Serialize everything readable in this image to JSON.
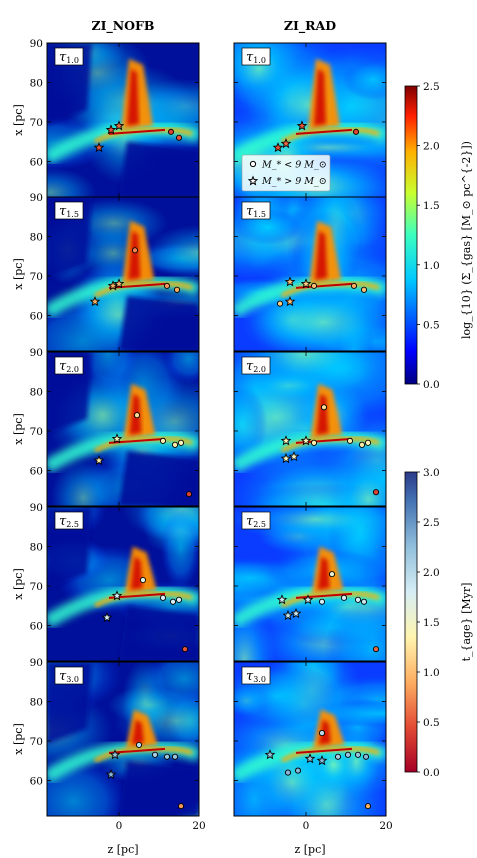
{
  "figure": {
    "columns": [
      "ZI_NOFB",
      "ZI_RAD"
    ],
    "row_labels": [
      "τ_{1.0}",
      "τ_{1.5}",
      "τ_{2.0}",
      "τ_{2.5}",
      "τ_{3.0}"
    ]
  },
  "legend": {
    "circle": "M_* < 9 M_⊙",
    "star": "M_* > 9 M_⊙"
  },
  "chart_data": {
    "type": "heatmap",
    "description_free": true,
    "xlabel": "z [pc]",
    "ylabel": "x [pc]",
    "xticks": [
      0,
      20
    ],
    "xlim": [
      -18,
      20
    ],
    "yticks": [
      60,
      70,
      80,
      90
    ],
    "ylim": [
      51,
      90
    ],
    "colorbars": [
      {
        "label": "log_{10} (Σ_{gas} [M_⊙ pc^{-2}])",
        "range": [
          0.0,
          2.5
        ],
        "ticks": [
          "0.0",
          "0.5",
          "1.0",
          "1.5",
          "2.0",
          "2.5"
        ],
        "cmap": "jet"
      },
      {
        "label": "t_{age} [Myr]",
        "range": [
          0.0,
          3.0
        ],
        "ticks": [
          "0.0",
          "0.5",
          "1.0",
          "1.5",
          "2.0",
          "2.5",
          "3.0"
        ],
        "cmap": "RdYlBu"
      }
    ],
    "panels": [
      {
        "col": "ZI_NOFB",
        "row": "τ_{1.0}",
        "stars": [
          {
            "z": -5,
            "x": 63.5,
            "age": 0.5
          },
          {
            "z": -2,
            "x": 68,
            "age": 0.5
          },
          {
            "z": 0,
            "x": 69,
            "age": 0.6
          }
        ],
        "circles": [
          {
            "z": 13,
            "x": 67.5,
            "age": 0.4
          },
          {
            "z": 15,
            "x": 66,
            "age": 0.5
          }
        ]
      },
      {
        "col": "ZI_RAD",
        "row": "τ_{1.0}",
        "stars": [
          {
            "z": -7,
            "x": 63.5,
            "age": 0.5
          },
          {
            "z": -5,
            "x": 64.5,
            "age": 0.6
          },
          {
            "z": -1,
            "x": 69,
            "age": 0.5
          }
        ],
        "circles": [
          {
            "z": 12.5,
            "x": 67.5,
            "age": 0.4
          }
        ]
      },
      {
        "col": "ZI_NOFB",
        "row": "τ_{1.5}",
        "stars": [
          {
            "z": -6,
            "x": 63.5,
            "age": 0.9
          },
          {
            "z": -1.5,
            "x": 67.5,
            "age": 0.9
          },
          {
            "z": 0,
            "x": 68,
            "age": 1.0
          }
        ],
        "circles": [
          {
            "z": 4,
            "x": 76.5,
            "age": 0.7
          },
          {
            "z": 12,
            "x": 67.5,
            "age": 0.8
          },
          {
            "z": 14.5,
            "x": 66.5,
            "age": 0.9
          }
        ]
      },
      {
        "col": "ZI_RAD",
        "row": "τ_{1.5}",
        "stars": [
          {
            "z": -4,
            "x": 68.5,
            "age": 1.0
          },
          {
            "z": -4,
            "x": 63.5,
            "age": 1.0
          },
          {
            "z": 0,
            "x": 68,
            "age": 1.1
          }
        ],
        "circles": [
          {
            "z": -6.5,
            "x": 63,
            "age": 1.1
          },
          {
            "z": 2,
            "x": 67.5,
            "age": 1.0
          },
          {
            "z": 12,
            "x": 67.5,
            "age": 0.9
          },
          {
            "z": 14.5,
            "x": 66.5,
            "age": 1.0
          }
        ]
      },
      {
        "col": "ZI_NOFB",
        "row": "τ_{2.0}",
        "stars": [
          {
            "z": -5,
            "x": 62.5,
            "age": 1.3
          },
          {
            "z": -0.5,
            "x": 68,
            "age": 1.4
          }
        ],
        "circles": [
          {
            "z": 4.5,
            "x": 74,
            "age": 1.2
          },
          {
            "z": 11,
            "x": 67.5,
            "age": 1.3
          },
          {
            "z": 14,
            "x": 66.5,
            "age": 1.3
          },
          {
            "z": 15.5,
            "x": 67,
            "age": 1.4
          },
          {
            "z": 17.5,
            "x": 54,
            "age": 0.4
          }
        ]
      },
      {
        "col": "ZI_RAD",
        "row": "τ_{2.0}",
        "stars": [
          {
            "z": -5,
            "x": 67.5,
            "age": 1.4
          },
          {
            "z": -5,
            "x": 63,
            "age": 1.4
          },
          {
            "z": -3,
            "x": 63.5,
            "age": 1.5
          },
          {
            "z": 0,
            "x": 67.5,
            "age": 1.4
          }
        ],
        "circles": [
          {
            "z": 4.5,
            "x": 76,
            "age": 1.2
          },
          {
            "z": 2,
            "x": 67,
            "age": 1.3
          },
          {
            "z": 11,
            "x": 67.5,
            "age": 1.3
          },
          {
            "z": 14,
            "x": 66.5,
            "age": 1.3
          },
          {
            "z": 15.5,
            "x": 67,
            "age": 1.4
          },
          {
            "z": 17.5,
            "x": 54.5,
            "age": 0.4
          }
        ]
      },
      {
        "col": "ZI_NOFB",
        "row": "τ_{2.5}",
        "stars": [
          {
            "z": -3,
            "x": 62,
            "age": 1.8
          },
          {
            "z": -0.5,
            "x": 67.5,
            "age": 1.8
          }
        ],
        "circles": [
          {
            "z": 6,
            "x": 71.5,
            "age": 1.7
          },
          {
            "z": 11,
            "x": 67,
            "age": 1.8
          },
          {
            "z": 13.5,
            "x": 66,
            "age": 1.8
          },
          {
            "z": 15,
            "x": 66.5,
            "age": 1.8
          },
          {
            "z": 16.5,
            "x": 54,
            "age": 0.5
          }
        ]
      },
      {
        "col": "ZI_RAD",
        "row": "τ_{2.5}",
        "stars": [
          {
            "z": -6,
            "x": 66.5,
            "age": 1.8
          },
          {
            "z": -4.5,
            "x": 62.5,
            "age": 1.9
          },
          {
            "z": -2.5,
            "x": 63,
            "age": 1.9
          },
          {
            "z": 0.5,
            "x": 66.5,
            "age": 1.8
          }
        ],
        "circles": [
          {
            "z": 4,
            "x": 66,
            "age": 1.8
          },
          {
            "z": 6.5,
            "x": 73,
            "age": 1.6
          },
          {
            "z": 9.5,
            "x": 67,
            "age": 1.8
          },
          {
            "z": 13,
            "x": 66.5,
            "age": 1.8
          },
          {
            "z": 14.5,
            "x": 66,
            "age": 1.9
          },
          {
            "z": 17.5,
            "x": 54,
            "age": 0.6
          }
        ]
      },
      {
        "col": "ZI_NOFB",
        "row": "τ_{3.0}",
        "stars": [
          {
            "z": -2,
            "x": 61.5,
            "age": 2.3
          },
          {
            "z": -1,
            "x": 66.5,
            "age": 2.2
          }
        ],
        "circles": [
          {
            "z": 5,
            "x": 69,
            "age": 2.0
          },
          {
            "z": 9,
            "x": 66.5,
            "age": 2.1
          },
          {
            "z": 12,
            "x": 66,
            "age": 2.2
          },
          {
            "z": 14,
            "x": 66,
            "age": 2.2
          },
          {
            "z": 15.5,
            "x": 53.5,
            "age": 0.8
          }
        ]
      },
      {
        "col": "ZI_RAD",
        "row": "τ_{3.0}",
        "stars": [
          {
            "z": -9,
            "x": 66.5,
            "age": 2.2
          },
          {
            "z": 1,
            "x": 65.5,
            "age": 2.2
          },
          {
            "z": 4,
            "x": 65,
            "age": 2.3
          }
        ],
        "circles": [
          {
            "z": -4.5,
            "x": 62,
            "age": 2.3
          },
          {
            "z": -2,
            "x": 62.5,
            "age": 2.3
          },
          {
            "z": 4,
            "x": 72,
            "age": 2.0
          },
          {
            "z": 8,
            "x": 66,
            "age": 2.1
          },
          {
            "z": 10.5,
            "x": 66.5,
            "age": 2.2
          },
          {
            "z": 13,
            "x": 66.5,
            "age": 2.2
          },
          {
            "z": 15,
            "x": 66,
            "age": 2.3
          },
          {
            "z": 15.5,
            "x": 53.5,
            "age": 0.9
          }
        ]
      }
    ]
  }
}
